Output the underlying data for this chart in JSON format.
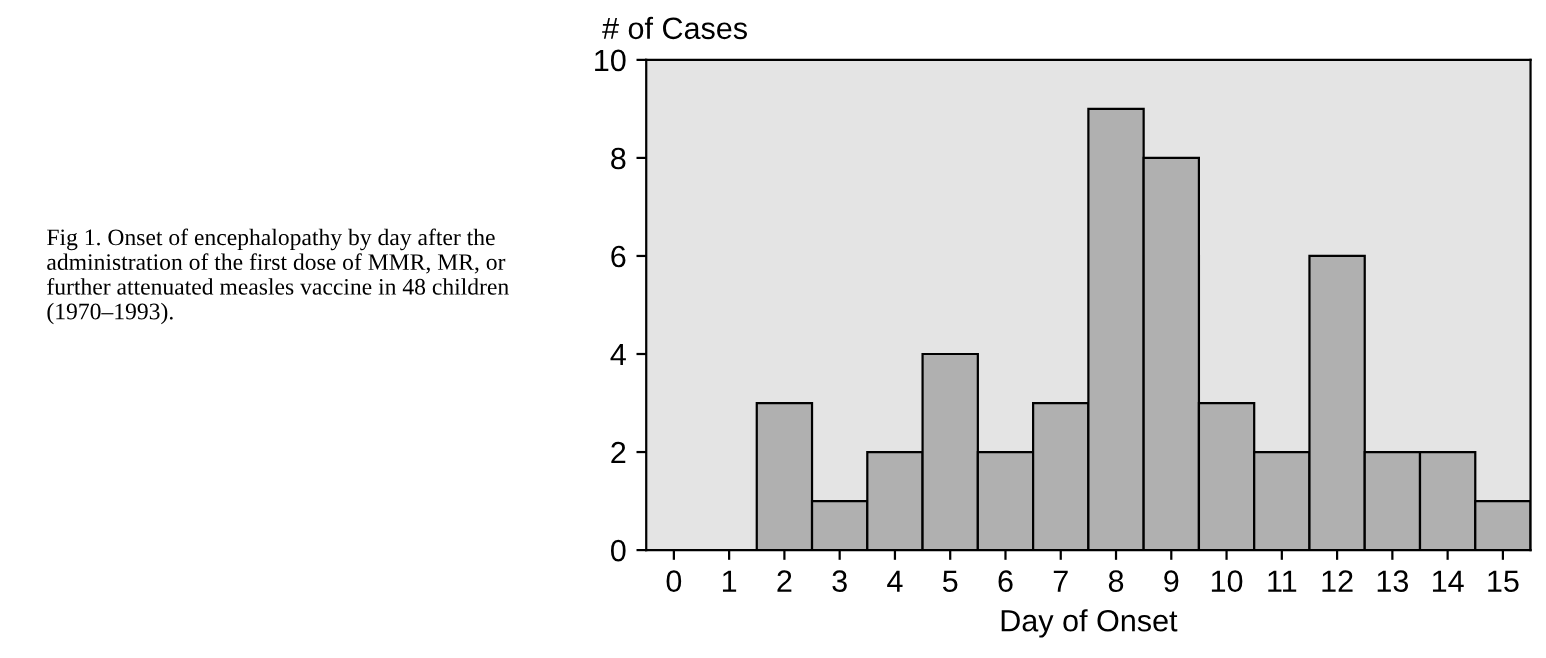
{
  "chart_data": {
    "type": "bar",
    "categories": [
      "0",
      "1",
      "2",
      "3",
      "4",
      "5",
      "6",
      "7",
      "8",
      "9",
      "10",
      "11",
      "12",
      "13",
      "14",
      "15"
    ],
    "values": [
      0,
      0,
      3,
      1,
      2,
      4,
      2,
      3,
      9,
      8,
      3,
      2,
      6,
      2,
      2,
      1
    ],
    "color": "#b0b0b0",
    "ylim": [
      0,
      10
    ],
    "yticks": [
      0,
      2,
      4,
      6,
      8,
      10
    ],
    "xlabel": "Day of Onset",
    "ylabel": "# of Cases",
    "annotations": [
      "Fig 1. Onset of encephalopathy by day after the\nadministration of the first dose of MMR, MR, or\nfurther attenuated measles vaccine in 48 children\n(1970–1993)."
    ]
  }
}
